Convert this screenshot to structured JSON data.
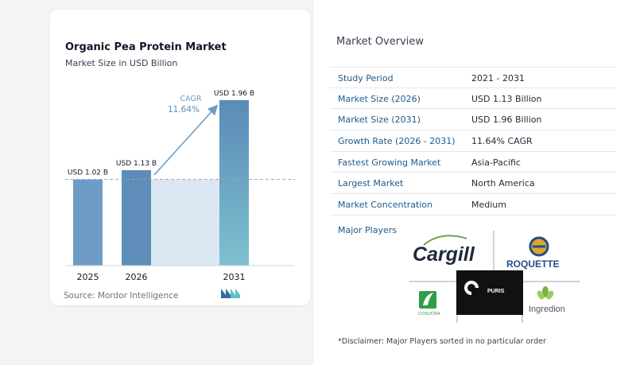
{
  "chart_data": {
    "type": "bar",
    "title": "Organic Pea Protein Market",
    "subtitle": "Market Size in USD Billion",
    "categories": [
      "2025",
      "2026",
      "2031"
    ],
    "values": [
      1.02,
      1.13,
      1.96
    ],
    "value_labels": [
      "USD 1.02 B",
      "USD 1.13 B",
      "USD 1.96 B"
    ],
    "ylim": [
      0,
      2.1
    ],
    "cagr_label": "CAGR",
    "cagr_value": "11.64%",
    "baseline_reference": 1.02,
    "colors": {
      "bar_2025": "#6e9cc6",
      "bar_2026": "#5d8db8",
      "bar_2031_top": "#5a8bb8",
      "bar_2031_bottom": "#7ec0cf",
      "gap_fill": "#dbe7f2",
      "arrow": "#6b9dc4"
    }
  },
  "source": "Source: Mordor Intelligence",
  "overview": {
    "title": "Market Overview",
    "rows": [
      {
        "label": "Study Period",
        "value": "2021 - 2031"
      },
      {
        "label": "Market Size (2026)",
        "value": "USD 1.13 Billion"
      },
      {
        "label": "Market Size (2031)",
        "value": "USD 1.96 Billion"
      },
      {
        "label": "Growth Rate (2026 - 2031)",
        "value": "11.64% CAGR"
      },
      {
        "label": "Fastest Growing Market",
        "value": "Asia-Pacific"
      },
      {
        "label": "Largest Market",
        "value": "North America"
      },
      {
        "label": "Market Concentration",
        "value": "Medium"
      }
    ],
    "players_label": "Major Players",
    "players": [
      "Cargill",
      "ROQUETTE",
      "COSUCRA",
      "PURIS",
      "Ingredion"
    ],
    "disclaimer": "*Disclaimer: Major Players sorted in no particular order"
  },
  "accent_label_color": "#1e5a8a"
}
